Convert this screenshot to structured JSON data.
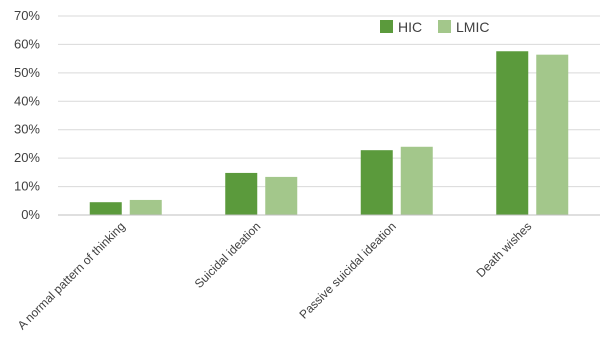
{
  "chart_data": {
    "type": "bar",
    "title": "",
    "xlabel": "",
    "ylabel": "",
    "categories": [
      "A normal pattern of thinking",
      "Suicidal ideation",
      "Passive suicidal ideation",
      "Death wishes"
    ],
    "series": [
      {
        "name": "HIC",
        "values": [
          4.5,
          14.8,
          22.8,
          57.6
        ],
        "color": "#5b9a3c"
      },
      {
        "name": "LMIC",
        "values": [
          5.3,
          13.4,
          24.0,
          56.4
        ],
        "color": "#a3c78b"
      }
    ],
    "ylim": [
      0,
      70
    ],
    "yticks": [
      0,
      10,
      20,
      30,
      40,
      50,
      60,
      70
    ],
    "ytick_labels": [
      "0%",
      "10%",
      "20%",
      "30%",
      "40%",
      "50%",
      "60%",
      "70%"
    ],
    "grid": true,
    "legend_position": "top-right"
  }
}
